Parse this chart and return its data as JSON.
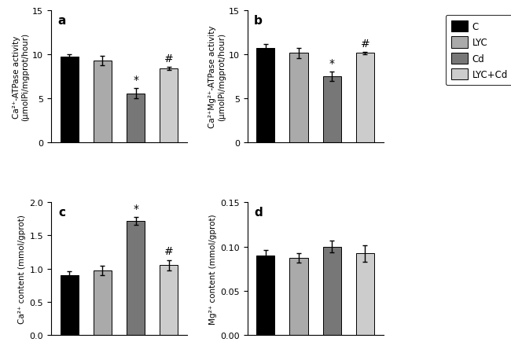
{
  "panels": {
    "a": {
      "title": "a",
      "ylabel": "Ca²⁺-ATPase activity\n(μmolPi/mgprot/hour)",
      "ylim": [
        0,
        15
      ],
      "yticks": [
        0,
        5,
        10,
        15
      ],
      "values": [
        9.7,
        9.3,
        5.6,
        8.4
      ],
      "errors": [
        0.35,
        0.55,
        0.6,
        0.15
      ],
      "annotations": [
        "",
        "",
        "*",
        "#"
      ]
    },
    "b": {
      "title": "b",
      "ylabel": "Ca²⁺Mg²⁺-ATPase activity\n(μmolPi/mgprot/hour)",
      "ylim": [
        0,
        15
      ],
      "yticks": [
        0,
        5,
        10,
        15
      ],
      "values": [
        10.75,
        10.15,
        7.5,
        10.15
      ],
      "errors": [
        0.45,
        0.55,
        0.55,
        0.15
      ],
      "annotations": [
        "",
        "",
        "*",
        "#"
      ]
    },
    "c": {
      "title": "c",
      "ylabel": "Ca²⁺ content (mmol/gprot)",
      "ylim": [
        0.0,
        2.0
      ],
      "yticks": [
        0.0,
        0.5,
        1.0,
        1.5,
        2.0
      ],
      "values": [
        0.9,
        0.97,
        1.72,
        1.05
      ],
      "errors": [
        0.055,
        0.07,
        0.06,
        0.08
      ],
      "annotations": [
        "",
        "",
        "*",
        "#"
      ]
    },
    "d": {
      "title": "d",
      "ylabel": "Mg²⁺ content (mmol/gprot)",
      "ylim": [
        0.0,
        0.15
      ],
      "yticks": [
        0.0,
        0.05,
        0.1,
        0.15
      ],
      "values": [
        0.09,
        0.087,
        0.1,
        0.092
      ],
      "errors": [
        0.006,
        0.005,
        0.007,
        0.009
      ],
      "annotations": [
        "",
        "",
        "",
        ""
      ]
    }
  },
  "bar_colors": [
    "#000000",
    "#aaaaaa",
    "#777777",
    "#cccccc"
  ],
  "legend_labels": [
    "C",
    "LYC",
    "Cd",
    "LYC+Cd"
  ],
  "bar_width": 0.55
}
